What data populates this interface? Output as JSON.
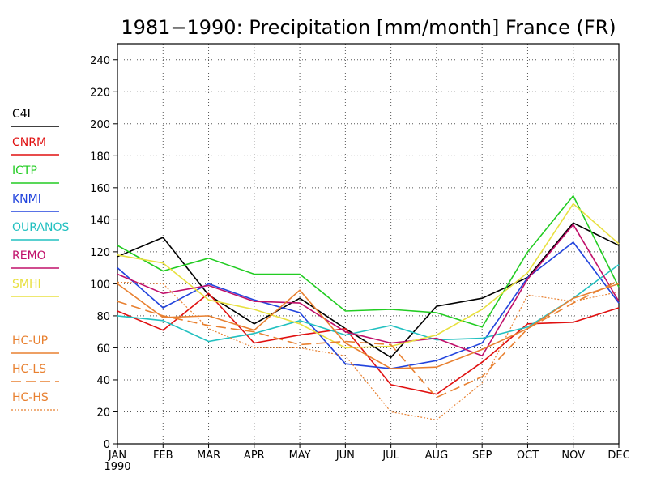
{
  "chart_data": {
    "type": "line",
    "title": "1981−1990: Precipitation [mm/month] France (FR)",
    "categories": [
      "JAN",
      "FEB",
      "MAR",
      "APR",
      "MAY",
      "JUN",
      "JUL",
      "AUG",
      "SEP",
      "OCT",
      "NOV",
      "DEC"
    ],
    "x_sublabel": "1990",
    "ylim": [
      0,
      250
    ],
    "yticks": [
      0,
      20,
      40,
      60,
      80,
      100,
      120,
      140,
      160,
      180,
      200,
      220,
      240
    ],
    "grid": true,
    "legend_placement": "left",
    "series": [
      {
        "name": "C4I",
        "color": "#000000",
        "dash": "solid",
        "values": [
          117,
          129,
          93,
          75,
          91,
          72,
          54,
          86,
          91,
          104,
          138,
          124
        ]
      },
      {
        "name": "CNRM",
        "color": "#e01010",
        "dash": "solid",
        "values": [
          83,
          71,
          94,
          63,
          68,
          72,
          37,
          31,
          51,
          75,
          76,
          85
        ]
      },
      {
        "name": "ICTP",
        "color": "#22cc22",
        "dash": "solid",
        "values": [
          124,
          108,
          116,
          106,
          106,
          83,
          84,
          82,
          73,
          120,
          155,
          98
        ]
      },
      {
        "name": "KNMI",
        "color": "#2244dd",
        "dash": "solid",
        "values": [
          110,
          85,
          100,
          90,
          82,
          50,
          47,
          52,
          63,
          104,
          126,
          88
        ]
      },
      {
        "name": "OURANOS",
        "color": "#22c0c0",
        "dash": "solid",
        "values": [
          80,
          77,
          64,
          69,
          77,
          68,
          74,
          65,
          66,
          73,
          91,
          112
        ]
      },
      {
        "name": "REMO",
        "color": "#c0106a",
        "dash": "solid",
        "values": [
          106,
          94,
          99,
          89,
          88,
          70,
          63,
          66,
          55,
          103,
          137,
          89
        ]
      },
      {
        "name": "SMHI",
        "color": "#e8e040",
        "dash": "solid",
        "values": [
          118,
          113,
          90,
          84,
          75,
          60,
          61,
          68,
          84,
          107,
          150,
          125
        ]
      },
      {
        "name": "HC-UP",
        "color": "#e88030",
        "dash": "solid",
        "values": [
          100,
          79,
          80,
          71,
          96,
          63,
          47,
          48,
          59,
          72,
          91,
          100
        ]
      },
      {
        "name": "HC-LS",
        "color": "#e88030",
        "dash": "long-dash",
        "values": [
          89,
          80,
          74,
          70,
          62,
          64,
          62,
          29,
          42,
          72,
          88,
          102
        ]
      },
      {
        "name": "HC-HS",
        "color": "#e88030",
        "dash": "short-dash",
        "values": [
          101,
          100,
          72,
          60,
          60,
          55,
          20,
          15,
          38,
          93,
          89,
          95
        ]
      }
    ]
  }
}
